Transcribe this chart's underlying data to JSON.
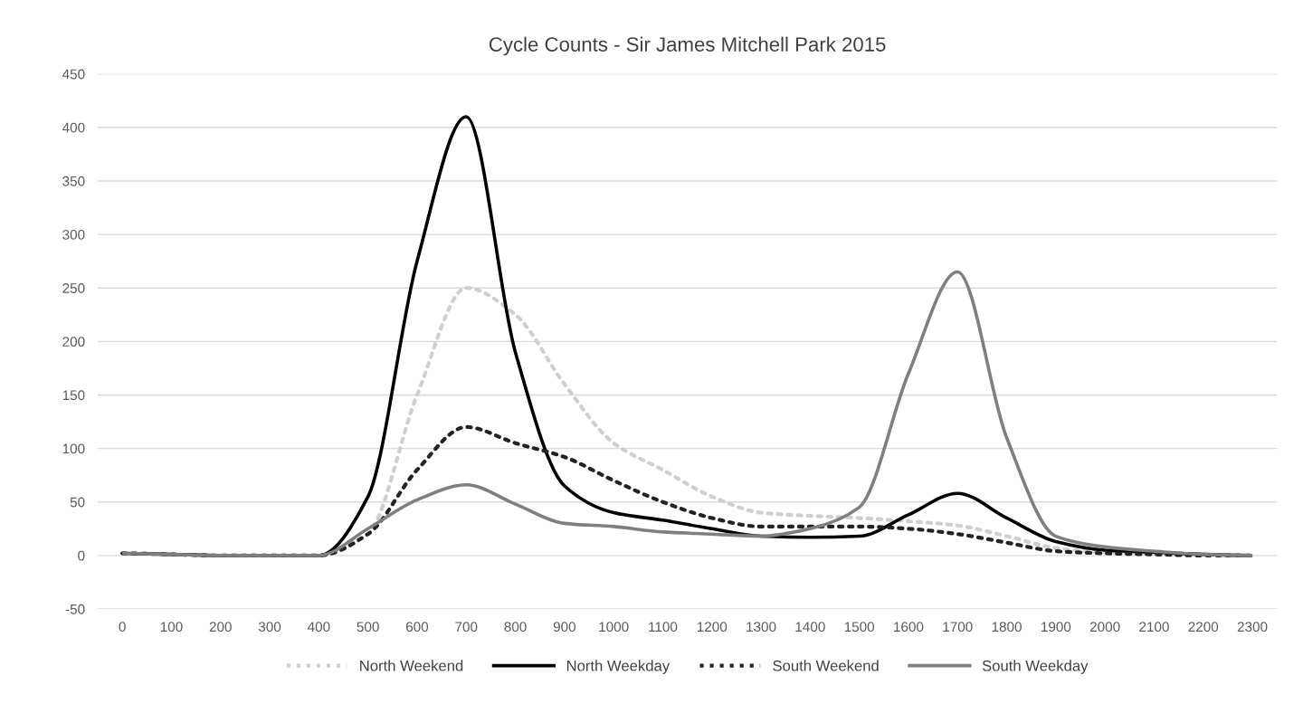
{
  "chart_data": {
    "type": "line",
    "title": "Cycle Counts - Sir James Mitchell Park 2015",
    "categories": [
      "0",
      "100",
      "200",
      "300",
      "400",
      "500",
      "600",
      "700",
      "800",
      "900",
      "1000",
      "1100",
      "1200",
      "1300",
      "1400",
      "1500",
      "1600",
      "1700",
      "1800",
      "1900",
      "2000",
      "2100",
      "2200",
      "2300"
    ],
    "series": [
      {
        "name": "North Weekend",
        "color": "#cfcfcf",
        "line_style": "dotted",
        "values": [
          2,
          1,
          0,
          0,
          0,
          20,
          150,
          250,
          225,
          160,
          105,
          80,
          55,
          40,
          37,
          35,
          32,
          28,
          18,
          7,
          3,
          2,
          1,
          0
        ]
      },
      {
        "name": "North Weekday",
        "color": "#000000",
        "line_style": "solid",
        "values": [
          2,
          1,
          0,
          0,
          0,
          55,
          275,
          410,
          190,
          65,
          40,
          33,
          25,
          18,
          17,
          18,
          38,
          58,
          35,
          13,
          5,
          3,
          1,
          0
        ]
      },
      {
        "name": "South Weekend",
        "color": "#222222",
        "line_style": "dotted",
        "values": [
          2,
          1,
          0,
          0,
          0,
          20,
          80,
          120,
          105,
          92,
          70,
          50,
          35,
          27,
          27,
          27,
          25,
          20,
          12,
          4,
          2,
          1,
          0,
          0
        ]
      },
      {
        "name": "South Weekday",
        "color": "#7f7f7f",
        "line_style": "solid",
        "values": [
          2,
          1,
          0,
          0,
          0,
          25,
          52,
          66,
          48,
          30,
          27,
          22,
          20,
          18,
          25,
          45,
          170,
          265,
          110,
          18,
          8,
          4,
          1,
          0
        ]
      }
    ],
    "ylim": [
      -50,
      450
    ],
    "yticks": [
      -50,
      0,
      50,
      100,
      150,
      200,
      250,
      300,
      350,
      400,
      450
    ],
    "grid": "y",
    "legend": "bottom",
    "marker": "none"
  }
}
